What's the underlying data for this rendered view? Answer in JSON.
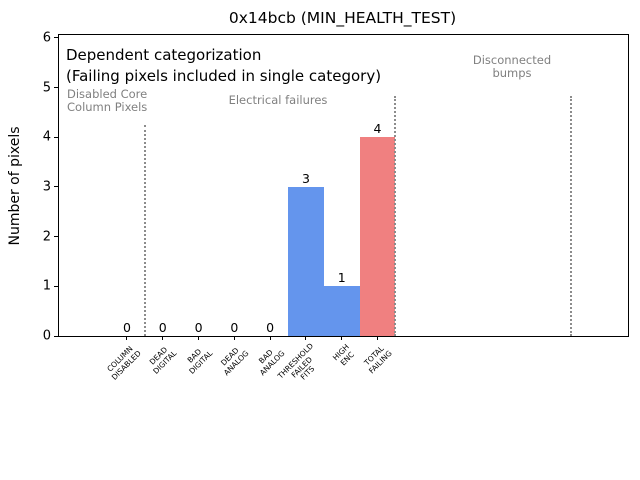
{
  "chart_data": {
    "type": "bar",
    "title": "0x14bcb (MIN_HEALTH_TEST)",
    "xlabel": "",
    "ylabel": "Number of pixels",
    "ylim": [
      0,
      6
    ],
    "yticks": [
      0,
      1,
      2,
      3,
      4,
      5,
      6
    ],
    "xlim": [
      -1.9,
      14.0
    ],
    "grid": false,
    "legend": null,
    "categories": [
      "COLUMN\nDISABLED",
      "DEAD\nDIGITAL",
      "BAD\nDIGITAL",
      "DEAD\nANALOG",
      "BAD\nANALOG",
      "THRESHOLD\nFAILED\nFITS",
      "HIGH\nENC",
      "TOTAL\nFAILING"
    ],
    "values": [
      0,
      0,
      0,
      0,
      0,
      3,
      1,
      4
    ],
    "bar_value_labels": [
      "0",
      "0",
      "0",
      "0",
      "0",
      "3",
      "1",
      "4"
    ],
    "bar_colors": [
      "#6495ED",
      "#6495ED",
      "#6495ED",
      "#6495ED",
      "#6495ED",
      "#6495ED",
      "#6495ED",
      "#F08080"
    ],
    "annotations": {
      "line1": "Dependent categorization",
      "line2": "(Failing pixels included in single category)"
    },
    "section_labels": [
      {
        "text": "Disabled Core\nColumn Pixels",
        "color": "#808080"
      },
      {
        "text": "Electrical failures",
        "color": "#808080"
      },
      {
        "text": "Disconnected\nbumps",
        "color": "#808080"
      }
    ],
    "dividers": [
      {
        "x": 0.5,
        "y_top": 4.25
      },
      {
        "x": 7.5,
        "y_top": 4.83
      },
      {
        "x": 12.4,
        "y_top": 4.83
      }
    ],
    "colors": {
      "bar_blue": "#6495ED",
      "bar_coral": "#F08080",
      "divider_gray": "#8c8c8c",
      "label_gray": "#808080",
      "axis_black": "#000000"
    }
  }
}
